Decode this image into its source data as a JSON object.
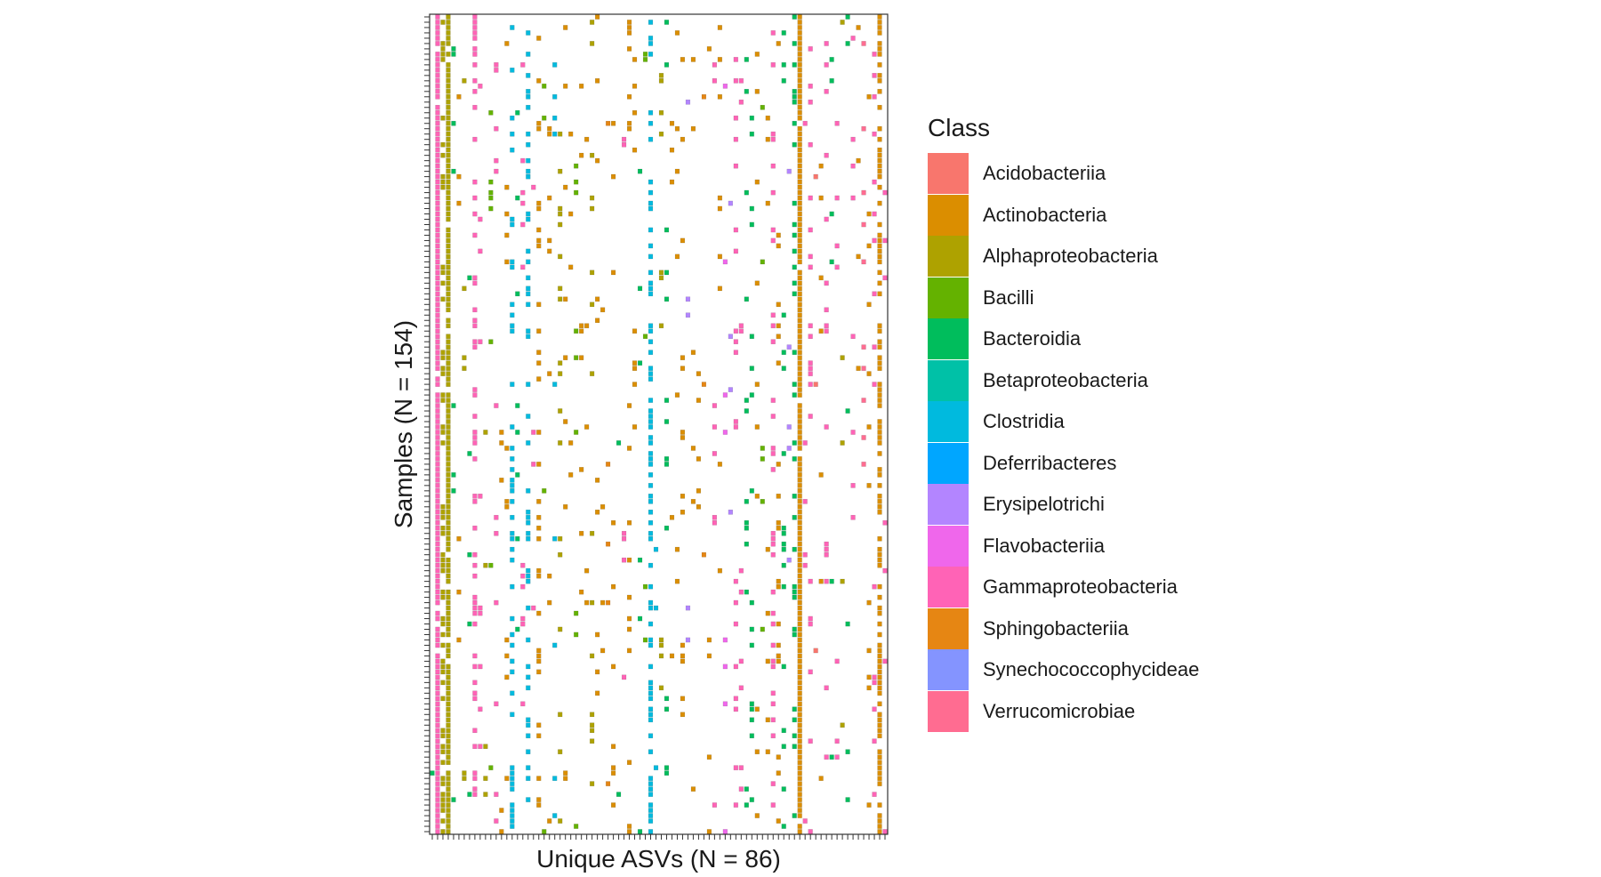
{
  "chart_data": {
    "type": "heatmap",
    "title": "",
    "xlabel": "Unique ASVs (N = 86)",
    "ylabel": "Samples (N = 154)",
    "n_columns": 86,
    "n_rows": 154,
    "x_tick_labels_shown": false,
    "y_tick_labels_shown": false,
    "grid": false,
    "legend_placement": "right",
    "legend": {
      "title": "Class",
      "entries": [
        {
          "label": "Acidobacteriia",
          "color": "#F8766D"
        },
        {
          "label": "Actinobacteria",
          "color": "#DB8E00"
        },
        {
          "label": "Alphaproteobacteria",
          "color": "#AEA200"
        },
        {
          "label": "Bacilli",
          "color": "#64B200"
        },
        {
          "label": "Bacteroidia",
          "color": "#00BD5C"
        },
        {
          "label": "Betaproteobacteria",
          "color": "#00C1A7"
        },
        {
          "label": "Clostridia",
          "color": "#00BADE"
        },
        {
          "label": "Deferribacteres",
          "color": "#00A6FF"
        },
        {
          "label": "Erysipelotrichi",
          "color": "#B385FF"
        },
        {
          "label": "Flavobacteriia",
          "color": "#EF67EB"
        },
        {
          "label": "Gammaproteobacteria",
          "color": "#FF63B6"
        },
        {
          "label": "Sphingobacteriia",
          "color": "#E68613"
        },
        {
          "label": "Synechococcophycideae",
          "color": "#8494FF"
        },
        {
          "label": "Verrucomicrobiae",
          "color": "#FF6C91"
        }
      ]
    },
    "column_classes": [
      "Bacteroidia",
      "Gammaproteobacteria",
      "Alphaproteobacteria",
      "Alphaproteobacteria",
      "Bacteroidia",
      "Actinobacteria",
      "Alphaproteobacteria",
      "Bacteroidia",
      "Gammaproteobacteria",
      "Gammaproteobacteria",
      "Alphaproteobacteria",
      "Bacilli",
      "Gammaproteobacteria",
      "Actinobacteria",
      "Actinobacteria",
      "Clostridia",
      "Bacteroidia",
      "Gammaproteobacteria",
      "Clostridia",
      "Gammaproteobacteria",
      "Actinobacteria",
      "Bacilli",
      "Actinobacteria",
      "Clostridia",
      "Alphaproteobacteria",
      "Actinobacteria",
      "Actinobacteria",
      "Bacilli",
      "Actinobacteria",
      "Actinobacteria",
      "Alphaproteobacteria",
      "Actinobacteria",
      "Actinobacteria",
      "Sphingobacteriia",
      "Actinobacteria",
      "Bacteroidia",
      "Gammaproteobacteria",
      "Actinobacteria",
      "Actinobacteria",
      "Bacteroidia",
      "Bacilli",
      "Clostridia",
      "Clostridia",
      "Alphaproteobacteria",
      "Bacteroidia",
      "Actinobacteria",
      "Actinobacteria",
      "Actinobacteria",
      "Erysipelotrichi",
      "Actinobacteria",
      "Actinobacteria",
      "Sphingobacteriia",
      "Actinobacteria",
      "Gammaproteobacteria",
      "Actinobacteria",
      "Flavobacteriia",
      "Erysipelotrichi",
      "Gammaproteobacteria",
      "Gammaproteobacteria",
      "Bacteroidia",
      "Bacteroidia",
      "Actinobacteria",
      "Bacilli",
      "Actinobacteria",
      "Gammaproteobacteria",
      "Actinobacteria",
      "Bacteroidia",
      "Erysipelotrichi",
      "Bacteroidia",
      "Actinobacteria",
      "Gammaproteobacteria",
      "Gammaproteobacteria",
      "Acidobacteriia",
      "Actinobacteria",
      "Gammaproteobacteria",
      "Bacteroidia",
      "Gammaproteobacteria",
      "Alphaproteobacteria",
      "Bacteroidia",
      "Gammaproteobacteria",
      "Actinobacteria",
      "Verrucomicrobiae",
      "Actinobacteria",
      "Gammaproteobacteria",
      "Actinobacteria",
      "Gammaproteobacteria"
    ],
    "column_presence_fraction": [
      0.02,
      0.97,
      0.3,
      0.9,
      0.05,
      0.05,
      0.05,
      0.05,
      0.3,
      0.04,
      0.05,
      0.04,
      0.04,
      0.05,
      0.05,
      0.3,
      0.05,
      0.05,
      0.3,
      0.05,
      0.2,
      0.05,
      0.05,
      0.05,
      0.15,
      0.05,
      0.05,
      0.05,
      0.05,
      0.05,
      0.1,
      0.05,
      0.05,
      0.04,
      0.05,
      0.05,
      0.05,
      0.1,
      0.05,
      0.05,
      0.05,
      0.4,
      0.05,
      0.05,
      0.1,
      0.05,
      0.05,
      0.15,
      0.04,
      0.05,
      0.05,
      0.04,
      0.04,
      0.05,
      0.05,
      0.05,
      0.04,
      0.1,
      0.05,
      0.05,
      0.05,
      0.05,
      0.05,
      0.05,
      0.25,
      0.1,
      0.1,
      0.05,
      0.25,
      0.95,
      0.05,
      0.1,
      0.04,
      0.05,
      0.1,
      0.05,
      0.05,
      0.05,
      0.05,
      0.05,
      0.05,
      0.05,
      0.05,
      0.1,
      0.6,
      0.05
    ]
  }
}
